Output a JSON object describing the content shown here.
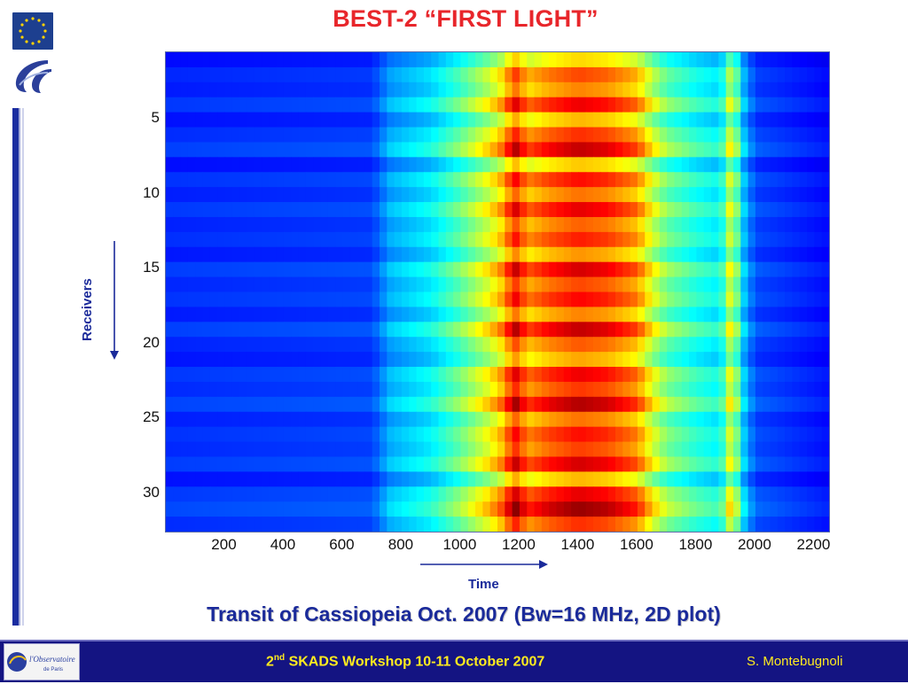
{
  "slide": {
    "title": "BEST-2    “FIRST LIGHT”",
    "caption": "Transit of Cassiopeia  Oct. 2007   (Bw=16 MHz,   2D plot)",
    "footer_ordinal": "2",
    "footer_suffix": "nd",
    "footer_event": " SKADS Workshop  10-11 October 2007",
    "footer_author": "S. Montebugnoli",
    "obs_logo_text": "l'Observatoire",
    "obs_logo_sub": "de Paris"
  },
  "colors": {
    "title": "#e8262b",
    "accent_blue": "#1a2a9a",
    "footer_bg": "#141482",
    "footer_text": "#ffeb1f"
  },
  "icons": [
    "eu-flag-icon",
    "ec-logo-icon",
    "observatoire-logo-icon",
    "arrow-down-icon",
    "arrow-right-icon"
  ],
  "chart_data": {
    "type": "heatmap",
    "title": "",
    "xlabel": "Time",
    "ylabel": "Receivers",
    "x_ticks": [
      "200",
      "400",
      "600",
      "800",
      "1000",
      "1200",
      "1400",
      "1600",
      "1800",
      "2000",
      "2200"
    ],
    "y_ticks": [
      "5",
      "10",
      "15",
      "20",
      "25",
      "30"
    ],
    "xlim": [
      0,
      2250
    ],
    "ylim": [
      32.5,
      0.5
    ],
    "rows": 32,
    "colormap": "jet",
    "profile": {
      "x": [
        0,
        700,
        760,
        900,
        1000,
        1100,
        1150,
        1180,
        1230,
        1300,
        1400,
        1500,
        1600,
        1650,
        1700,
        1800,
        1880,
        1920,
        1960,
        2000,
        2250
      ],
      "intensity": [
        0.17,
        0.19,
        0.3,
        0.37,
        0.48,
        0.62,
        0.72,
        0.88,
        0.74,
        0.8,
        0.85,
        0.82,
        0.74,
        0.6,
        0.5,
        0.42,
        0.38,
        0.62,
        0.33,
        0.2,
        0.14
      ]
    },
    "row_scale": [
      0.78,
      0.95,
      0.88,
      1.05,
      0.82,
      0.98,
      1.1,
      0.8,
      1.02,
      0.9,
      1.06,
      0.92,
      1.0,
      0.86,
      1.08,
      0.95,
      1.03,
      0.88,
      1.1,
      0.93,
      0.84,
      1.05,
      0.97,
      1.12,
      0.9,
      1.02,
      0.96,
      1.08,
      0.82,
      1.06,
      1.15,
      0.98
    ]
  }
}
